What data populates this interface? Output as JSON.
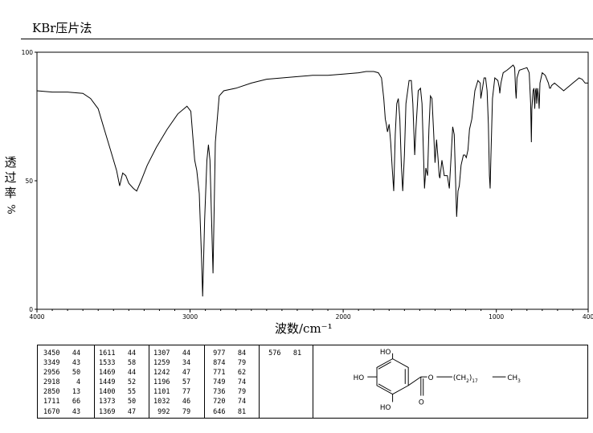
{
  "header": {
    "title": "KBr压片法"
  },
  "chart_data": {
    "type": "line",
    "xlabel": "波数/cm⁻¹",
    "ylabel": [
      "透",
      "过",
      "率",
      "%"
    ],
    "xlim": [
      4000,
      400
    ],
    "ylim": [
      0,
      100
    ],
    "x_ticks": [
      4000,
      3000,
      2000,
      1000,
      400
    ],
    "x_tick_labels": [
      "4000",
      "3000",
      "2000",
      "1000",
      "400"
    ],
    "y_ticks": [
      0,
      50,
      100
    ],
    "y_tick_labels": [
      "0",
      "50",
      "100"
    ],
    "grid": false,
    "series": [
      {
        "points": [
          [
            4000,
            85
          ],
          [
            3900,
            84.5
          ],
          [
            3800,
            84.5
          ],
          [
            3700,
            84
          ],
          [
            3650,
            82
          ],
          [
            3600,
            78
          ],
          [
            3560,
            70
          ],
          [
            3520,
            62
          ],
          [
            3480,
            54
          ],
          [
            3460,
            48
          ],
          [
            3440,
            53
          ],
          [
            3420,
            52
          ],
          [
            3400,
            49
          ],
          [
            3370,
            47
          ],
          [
            3349,
            46
          ],
          [
            3320,
            50
          ],
          [
            3280,
            56
          ],
          [
            3220,
            63
          ],
          [
            3150,
            70
          ],
          [
            3080,
            76
          ],
          [
            3020,
            79
          ],
          [
            2995,
            77
          ],
          [
            2970,
            58
          ],
          [
            2956,
            54
          ],
          [
            2940,
            45
          ],
          [
            2925,
            20
          ],
          [
            2918,
            5
          ],
          [
            2905,
            35
          ],
          [
            2890,
            58
          ],
          [
            2880,
            64
          ],
          [
            2870,
            58
          ],
          [
            2850,
            14
          ],
          [
            2835,
            65
          ],
          [
            2810,
            83
          ],
          [
            2780,
            85
          ],
          [
            2700,
            86
          ],
          [
            2600,
            88
          ],
          [
            2500,
            89.5
          ],
          [
            2400,
            90
          ],
          [
            2300,
            90.5
          ],
          [
            2200,
            91
          ],
          [
            2100,
            91
          ],
          [
            2000,
            91.5
          ],
          [
            1900,
            92
          ],
          [
            1850,
            92.5
          ],
          [
            1800,
            92.5
          ],
          [
            1770,
            92
          ],
          [
            1750,
            90
          ],
          [
            1735,
            82
          ],
          [
            1725,
            74
          ],
          [
            1718,
            72
          ],
          [
            1711,
            69
          ],
          [
            1700,
            72
          ],
          [
            1690,
            65
          ],
          [
            1680,
            55
          ],
          [
            1670,
            46
          ],
          [
            1660,
            68
          ],
          [
            1650,
            80
          ],
          [
            1640,
            82
          ],
          [
            1630,
            74
          ],
          [
            1620,
            56
          ],
          [
            1611,
            46
          ],
          [
            1600,
            60
          ],
          [
            1590,
            80
          ],
          [
            1570,
            89
          ],
          [
            1555,
            89
          ],
          [
            1545,
            80
          ],
          [
            1533,
            60
          ],
          [
            1525,
            70
          ],
          [
            1510,
            85
          ],
          [
            1495,
            86
          ],
          [
            1485,
            80
          ],
          [
            1469,
            47
          ],
          [
            1460,
            55
          ],
          [
            1449,
            52
          ],
          [
            1440,
            70
          ],
          [
            1430,
            83
          ],
          [
            1420,
            82
          ],
          [
            1410,
            70
          ],
          [
            1400,
            57
          ],
          [
            1390,
            66
          ],
          [
            1380,
            58
          ],
          [
            1373,
            52
          ],
          [
            1369,
            51
          ],
          [
            1355,
            58
          ],
          [
            1340,
            52
          ],
          [
            1320,
            52
          ],
          [
            1307,
            47
          ],
          [
            1295,
            60
          ],
          [
            1285,
            71
          ],
          [
            1275,
            68
          ],
          [
            1259,
            36
          ],
          [
            1250,
            46
          ],
          [
            1242,
            48
          ],
          [
            1230,
            56
          ],
          [
            1215,
            60
          ],
          [
            1205,
            60
          ],
          [
            1196,
            59
          ],
          [
            1185,
            62
          ],
          [
            1175,
            70
          ],
          [
            1160,
            74
          ],
          [
            1140,
            85
          ],
          [
            1120,
            89
          ],
          [
            1105,
            88
          ],
          [
            1101,
            82
          ],
          [
            1090,
            86
          ],
          [
            1080,
            90
          ],
          [
            1070,
            90
          ],
          [
            1060,
            85
          ],
          [
            1052,
            72
          ],
          [
            1045,
            52
          ],
          [
            1040,
            47
          ],
          [
            1035,
            60
          ],
          [
            1025,
            82
          ],
          [
            1010,
            90
          ],
          [
            990,
            89
          ],
          [
            980,
            86
          ],
          [
            977,
            84
          ],
          [
            970,
            88
          ],
          [
            955,
            92
          ],
          [
            930,
            93
          ],
          [
            910,
            94
          ],
          [
            890,
            95
          ],
          [
            880,
            94
          ],
          [
            874,
            85
          ],
          [
            870,
            82
          ],
          [
            865,
            90
          ],
          [
            850,
            93
          ],
          [
            800,
            94
          ],
          [
            785,
            92
          ],
          [
            776,
            80
          ],
          [
            771,
            65
          ],
          [
            768,
            78
          ],
          [
            760,
            85
          ],
          [
            754,
            86
          ],
          [
            749,
            78
          ],
          [
            744,
            85
          ],
          [
            740,
            86
          ],
          [
            736,
            80
          ],
          [
            730,
            86
          ],
          [
            725,
            83
          ],
          [
            720,
            78
          ],
          [
            715,
            88
          ],
          [
            700,
            92
          ],
          [
            680,
            91
          ],
          [
            660,
            88
          ],
          [
            652,
            86
          ],
          [
            646,
            86
          ],
          [
            640,
            87
          ],
          [
            620,
            88
          ],
          [
            600,
            87
          ],
          [
            580,
            86
          ],
          [
            560,
            85
          ],
          [
            540,
            86
          ],
          [
            520,
            87
          ],
          [
            500,
            88
          ],
          [
            480,
            89
          ],
          [
            460,
            90
          ],
          [
            440,
            89.5
          ],
          [
            420,
            88
          ],
          [
            400,
            88
          ]
        ]
      }
    ]
  },
  "peak_table": {
    "columns": [
      [
        [
          "3450",
          "44"
        ],
        [
          "3349",
          "43"
        ],
        [
          "2956",
          "50"
        ],
        [
          "2918",
          "4"
        ],
        [
          "2850",
          "13"
        ],
        [
          "1711",
          "66"
        ],
        [
          "1670",
          "43"
        ]
      ],
      [
        [
          "1611",
          "44"
        ],
        [
          "1533",
          "58"
        ],
        [
          "1469",
          "44"
        ],
        [
          "1449",
          "52"
        ],
        [
          "1400",
          "55"
        ],
        [
          "1373",
          "50"
        ],
        [
          "1369",
          "47"
        ]
      ],
      [
        [
          "1307",
          "44"
        ],
        [
          "1259",
          "34"
        ],
        [
          "1242",
          "47"
        ],
        [
          "1196",
          "57"
        ],
        [
          "1101",
          "77"
        ],
        [
          "1032",
          "46"
        ],
        [
          "992",
          "79"
        ]
      ],
      [
        [
          "977",
          "84"
        ],
        [
          "874",
          "79"
        ],
        [
          "771",
          "62"
        ],
        [
          "749",
          "74"
        ],
        [
          "736",
          "79"
        ],
        [
          "720",
          "74"
        ],
        [
          "646",
          "81"
        ]
      ],
      [
        [
          "576",
          "81"
        ]
      ]
    ]
  },
  "structure": {
    "ho_top": "HO",
    "ho_mid": "HO",
    "ho_bottom": "HO",
    "o_ester": "O",
    "o_carbonyl": "O",
    "chain_open": "(CH",
    "chain_sub2": "2",
    "chain_close": ")",
    "chain_sub17": "17",
    "ch3": "CH",
    "ch3_sub": "3"
  }
}
